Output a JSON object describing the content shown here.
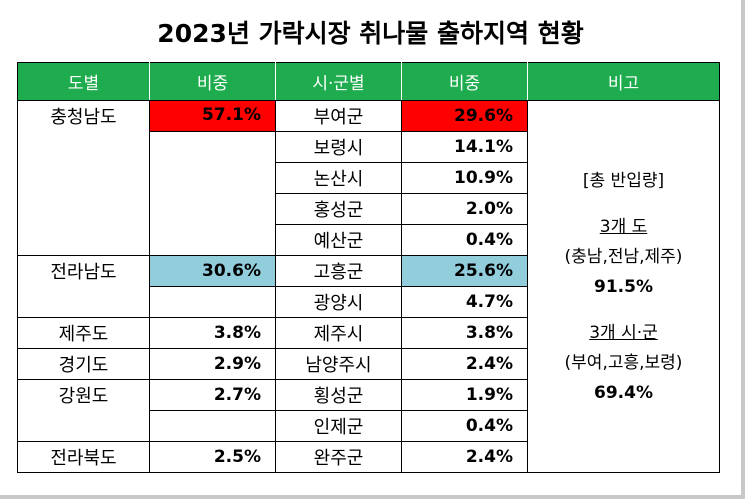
{
  "title": "2023년 가락시장 취나물 출하지역 현황",
  "headers": {
    "province": "도별",
    "province_share": "비중",
    "city": "시·군별",
    "city_share": "비중",
    "note": "비고"
  },
  "rows": [
    {
      "province": "충청남도",
      "province_share": "57.1%",
      "city": "부여군",
      "city_share": "29.6%"
    },
    {
      "city": "보령시",
      "city_share": "14.1%"
    },
    {
      "city": "논산시",
      "city_share": "10.9%"
    },
    {
      "city": "홍성군",
      "city_share": "2.0%"
    },
    {
      "city": "예산군",
      "city_share": "0.4%"
    },
    {
      "province": "전라남도",
      "province_share": "30.6%",
      "city": "고흥군",
      "city_share": "25.6%"
    },
    {
      "city": "광양시",
      "city_share": "4.7%"
    },
    {
      "province": "제주도",
      "province_share": "3.8%",
      "city": "제주시",
      "city_share": "3.8%"
    },
    {
      "province": "경기도",
      "province_share": "2.9%",
      "city": "남양주시",
      "city_share": "2.4%"
    },
    {
      "province": "강원도",
      "province_share": "2.7%",
      "city": "횡성군",
      "city_share": "1.9%"
    },
    {
      "city": "인제군",
      "city_share": "0.4%"
    },
    {
      "province": "전라북도",
      "province_share": "2.5%",
      "city": "완주군",
      "city_share": "2.4%"
    }
  ],
  "note": {
    "heading": "[총 반입량]",
    "provinces_label": "3개 도",
    "provinces_list": "(충남,전남,제주)",
    "provinces_value": "91.5%",
    "cities_label": "3개 시·군",
    "cities_list": "(부여,고흥,보령)",
    "cities_value": "69.4%"
  },
  "colors": {
    "header_bg": "#1eac4e",
    "highlight_red": "#ff0000",
    "highlight_blue": "#92cddc"
  }
}
